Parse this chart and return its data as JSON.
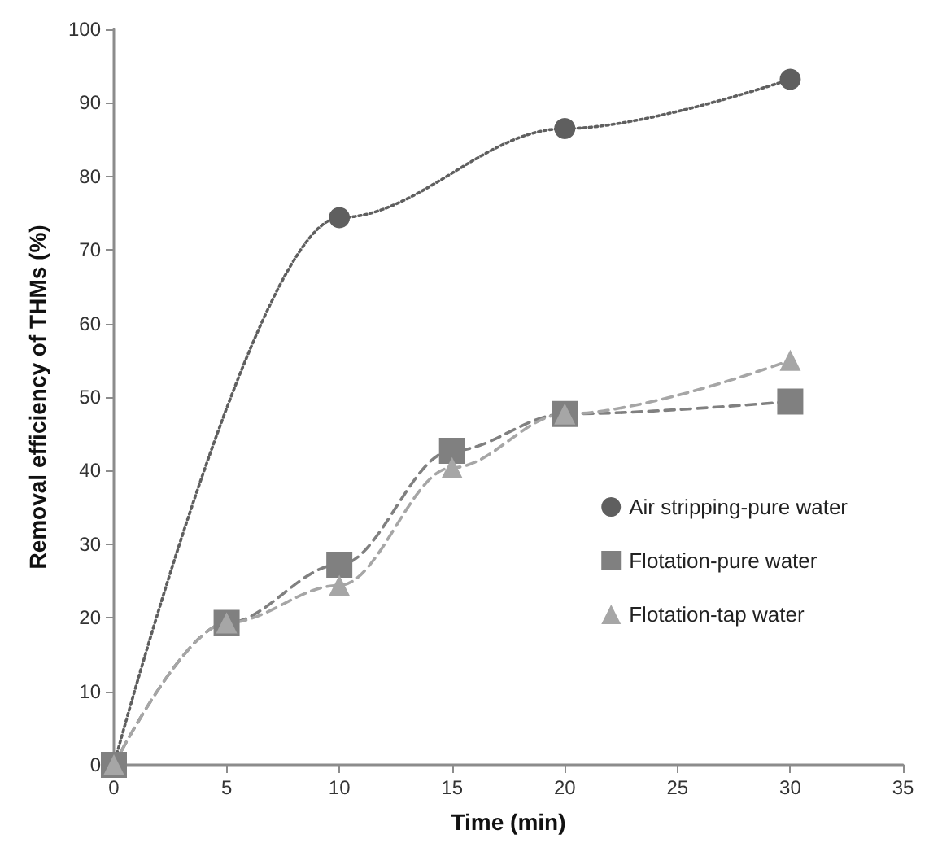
{
  "chart_data": {
    "type": "line",
    "xlabel": "Time (min)",
    "ylabel": "Removal efficiency of THMs (%)",
    "xlim": [
      0,
      35
    ],
    "xticks": [
      0,
      5,
      10,
      15,
      20,
      25,
      30,
      35
    ],
    "ylim": [
      0,
      100
    ],
    "yticks": [
      0,
      10,
      20,
      30,
      40,
      50,
      60,
      70,
      80,
      90,
      100
    ],
    "grid": false,
    "legend": "bottom right",
    "series": [
      {
        "name": "Air stripping-pure water",
        "color": "#5f5f5f",
        "marker": "circle",
        "line_style": "dotted",
        "x": [
          0,
          10,
          20,
          30
        ],
        "values": [
          0,
          74.4,
          86.5,
          93.2
        ]
      },
      {
        "name": "Flotation-pure water",
        "color": "#808080",
        "marker": "square",
        "line_style": "dashed",
        "x": [
          0,
          5,
          10,
          15,
          20,
          30
        ],
        "values": [
          0,
          19.3,
          27.2,
          42.7,
          47.7,
          49.4
        ]
      },
      {
        "name": "Flotation-tap water",
        "color": "#a6a6a6",
        "marker": "triangle",
        "line_style": "dashed",
        "x": [
          0,
          5,
          10,
          15,
          20,
          30
        ],
        "values": [
          0,
          19.3,
          24.4,
          40.4,
          47.7,
          55.0
        ]
      }
    ]
  }
}
